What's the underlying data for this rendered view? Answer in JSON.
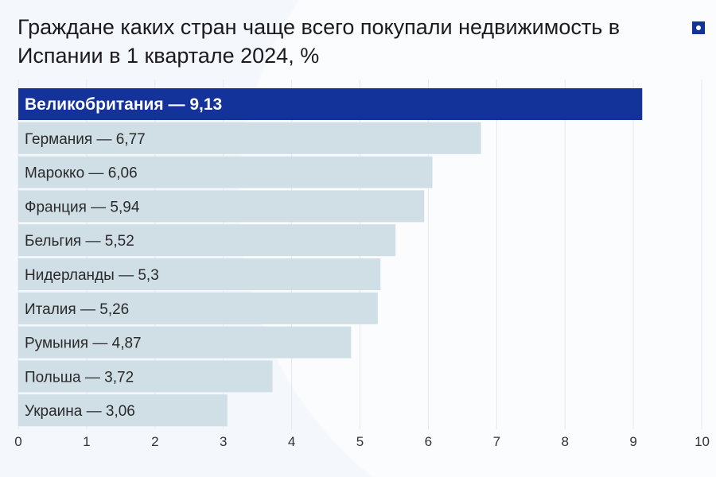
{
  "title": "Граждане каких стран чаще всего покупали недвижимость в Испании в 1 квартале 2024, %",
  "logo_icon": "square-dot-logo",
  "colors": {
    "highlight": "#13329a",
    "bar": "#d0dee6",
    "grid": "#e4e8ee",
    "text": "#2a2a2a"
  },
  "chart_data": {
    "type": "bar",
    "orientation": "horizontal",
    "categories": [
      "Великобритания",
      "Германия",
      "Марокко",
      "Франция",
      "Бельгия",
      "Нидерланды",
      "Италия",
      "Румыния",
      "Польша",
      "Украина"
    ],
    "values": [
      9.13,
      6.77,
      6.06,
      5.94,
      5.52,
      5.3,
      5.26,
      4.87,
      3.72,
      3.06
    ],
    "labels": [
      "Великобритания — 9,13",
      "Германия — 6,77",
      "Марокко — 6,06",
      "Франция — 5,94",
      "Бельгия — 5,52",
      "Нидерланды — 5,3",
      "Италия — 5,26",
      "Румыния — 4,87",
      "Польша — 3,72",
      "Украина — 3,06"
    ],
    "xlim": [
      0,
      10
    ],
    "xticks": [
      "0",
      "1",
      "2",
      "3",
      "4",
      "5",
      "6",
      "7",
      "8",
      "9",
      "10"
    ],
    "grid": true,
    "highlighted_index": 0
  }
}
